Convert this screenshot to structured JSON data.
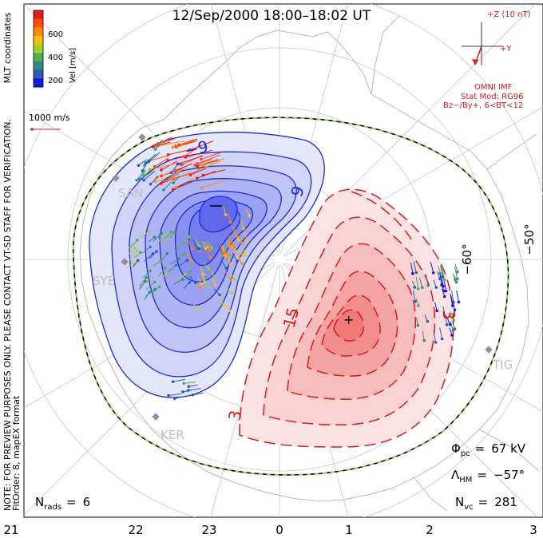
{
  "chart_data": {
    "type": "convection-map",
    "title": "12/Sep/2000  18:00–18:02  UT",
    "coordinates_label": "MLT coordinates",
    "vertical_note_1": "NOTE: FOR PREVIEW PURPOSES ONLY. PLEASE CONTACT VT-SD STAFF FOR VERIFICATION.",
    "vertical_note_2": "FitOrder: 8, mapEX format",
    "colorbar": {
      "label": "Vel [m/s]",
      "ticks": [
        "600",
        "400",
        "200"
      ],
      "colors": [
        "#e41a1c",
        "#ff4a10",
        "#ff8a00",
        "#f7c10f",
        "#a3d12c",
        "#4caf50",
        "#2e8b8b",
        "#2b5cb8",
        "#1818e0"
      ]
    },
    "reference_vector": {
      "label": "1000 m/s"
    },
    "imf": {
      "z_label": "+Z (10 nT)",
      "y_label": "+Y",
      "source": "OMNI IMF",
      "model": "Stat Mod: RG96",
      "condition": "Bz−/By+, 6<BT<12"
    },
    "latitude_labels": [
      "−60°",
      "−50°"
    ],
    "mlt_ticks": [
      "21",
      "22",
      "23",
      "0",
      "1",
      "2",
      "3"
    ],
    "stations": [
      "SAN",
      "SYE",
      "KER",
      "TIG"
    ],
    "contour_labels": {
      "negative": [
        "−9",
        "9",
        "−"
      ],
      "positive": [
        "15",
        "3",
        "3",
        "+"
      ]
    },
    "stats": {
      "phi_pc": "67 kV",
      "lambda_hm": "−57°",
      "n_vc": "281",
      "n_rads": "6"
    },
    "labels": {
      "phi": "Φ",
      "phi_sub": "pc",
      "lambda": "Λ",
      "lambda_sub": "HM",
      "n": "N",
      "n_vc_sub": "vc",
      "n_rads_sub": "rads",
      "eq": "="
    }
  }
}
